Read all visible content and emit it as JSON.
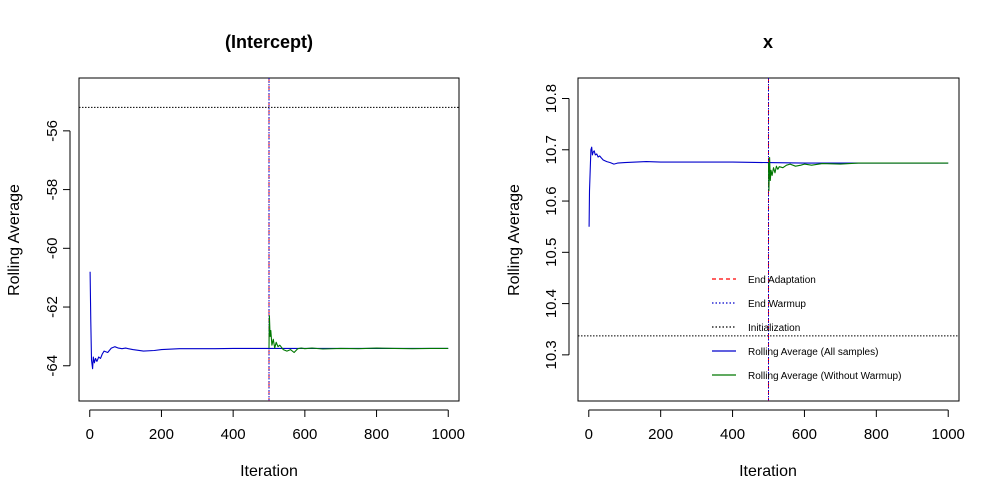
{
  "chart_data": [
    {
      "type": "line",
      "title": "(Intercept)",
      "xlabel": "Iteration",
      "ylabel": "Rolling Average",
      "xlim": [
        -30,
        1030
      ],
      "ylim": [
        -65.2,
        -54.2
      ],
      "xticks": [
        0,
        200,
        400,
        600,
        800,
        1000
      ],
      "yticks": [
        -64,
        -62,
        -60,
        -58,
        -56
      ],
      "vlines": [
        {
          "name": "End Adaptation",
          "x": 500,
          "color": "#ff0000",
          "style": "dashed"
        },
        {
          "name": "End Warmup",
          "x": 500,
          "color": "#0000cc",
          "style": "dotted"
        }
      ],
      "hlines": [
        {
          "name": "Initialization",
          "y": -55.2,
          "color": "#000000",
          "style": "dotted"
        }
      ],
      "series": [
        {
          "name": "Rolling Average (All samples)",
          "color": "#0000cc",
          "x": [
            1,
            3,
            5,
            8,
            10,
            13,
            16,
            20,
            25,
            30,
            35,
            40,
            50,
            60,
            70,
            80,
            90,
            100,
            120,
            150,
            180,
            200,
            250,
            300,
            350,
            400,
            450,
            500,
            550,
            600,
            700,
            800,
            900,
            1000
          ],
          "y": [
            -60.8,
            -62.5,
            -63.8,
            -64.1,
            -63.7,
            -63.9,
            -63.75,
            -63.85,
            -63.7,
            -63.75,
            -63.6,
            -63.5,
            -63.55,
            -63.4,
            -63.35,
            -63.4,
            -63.42,
            -63.4,
            -63.45,
            -63.5,
            -63.48,
            -63.45,
            -63.42,
            -63.42,
            -63.42,
            -63.41,
            -63.41,
            -63.41,
            -63.41,
            -63.41,
            -63.41,
            -63.41,
            -63.41,
            -63.41
          ]
        },
        {
          "name": "Rolling Average (Without Warmup)",
          "color": "#007700",
          "x": [
            500,
            501,
            503,
            505,
            508,
            512,
            516,
            520,
            525,
            530,
            540,
            550,
            560,
            570,
            580,
            590,
            600,
            620,
            650,
            700,
            750,
            800,
            850,
            900,
            950,
            1000
          ],
          "y": [
            -63.4,
            -62.3,
            -63.0,
            -62.8,
            -63.3,
            -63.1,
            -63.4,
            -63.2,
            -63.35,
            -63.3,
            -63.45,
            -63.5,
            -63.45,
            -63.55,
            -63.42,
            -63.4,
            -63.42,
            -63.4,
            -63.43,
            -63.41,
            -63.42,
            -63.4,
            -63.41,
            -63.42,
            -63.41,
            -63.41
          ]
        }
      ]
    },
    {
      "type": "line",
      "title": "x",
      "xlabel": "Iteration",
      "ylabel": "Rolling Average",
      "xlim": [
        -30,
        1030
      ],
      "ylim": [
        10.21,
        10.84
      ],
      "xticks": [
        0,
        200,
        400,
        600,
        800,
        1000
      ],
      "yticks": [
        10.3,
        10.4,
        10.5,
        10.6,
        10.7,
        10.8
      ],
      "vlines": [
        {
          "name": "End Adaptation",
          "x": 500,
          "color": "#ff0000",
          "style": "dashed"
        },
        {
          "name": "End Warmup",
          "x": 500,
          "color": "#0000cc",
          "style": "dotted"
        }
      ],
      "hlines": [
        {
          "name": "Initialization",
          "y": 10.337,
          "color": "#000000",
          "style": "dotted"
        }
      ],
      "series": [
        {
          "name": "Rolling Average (All samples)",
          "color": "#0000cc",
          "x": [
            1,
            2,
            4,
            6,
            8,
            10,
            12,
            15,
            18,
            22,
            26,
            30,
            35,
            40,
            50,
            60,
            70,
            80,
            100,
            130,
            160,
            200,
            250,
            300,
            400,
            500,
            600,
            700,
            800,
            900,
            1000
          ],
          "y": [
            10.55,
            10.62,
            10.66,
            10.7,
            10.705,
            10.69,
            10.695,
            10.698,
            10.69,
            10.692,
            10.686,
            10.688,
            10.684,
            10.68,
            10.677,
            10.675,
            10.672,
            10.674,
            10.675,
            10.676,
            10.677,
            10.676,
            10.676,
            10.676,
            10.676,
            10.675,
            10.674,
            10.674,
            10.674,
            10.674,
            10.674
          ]
        },
        {
          "name": "Rolling Average (Without Warmup)",
          "color": "#007700",
          "x": [
            500,
            501,
            503,
            505,
            507,
            510,
            514,
            518,
            522,
            526,
            530,
            540,
            550,
            560,
            575,
            590,
            600,
            620,
            650,
            700,
            750,
            800,
            900,
            1000
          ],
          "y": [
            10.675,
            10.62,
            10.685,
            10.64,
            10.66,
            10.65,
            10.665,
            10.655,
            10.668,
            10.662,
            10.667,
            10.665,
            10.67,
            10.672,
            10.668,
            10.67,
            10.672,
            10.67,
            10.673,
            10.672,
            10.674,
            10.674,
            10.674,
            10.674
          ]
        }
      ],
      "legend": {
        "placement": "bottom-right",
        "entries": [
          {
            "label": "End Adaptation",
            "color": "#ff0000",
            "style": "dashed"
          },
          {
            "label": "End Warmup",
            "color": "#0000cc",
            "style": "dotted"
          },
          {
            "label": "Initialization",
            "color": "#000000",
            "style": "dotted"
          },
          {
            "label": "Rolling Average (All samples)",
            "color": "#0000cc",
            "style": "solid"
          },
          {
            "label": "Rolling Average (Without Warmup)",
            "color": "#007700",
            "style": "solid"
          }
        ]
      }
    }
  ]
}
